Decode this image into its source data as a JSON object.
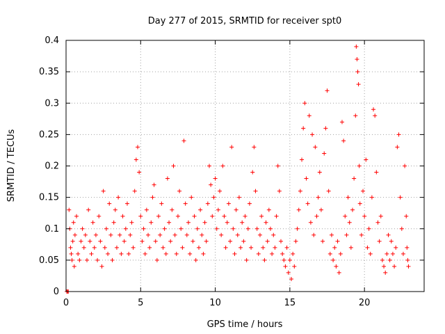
{
  "chart_data": {
    "type": "scatter",
    "title": "Day 277 of 2015, SRMTID for receiver spt0",
    "xlabel": "GPS time / hours",
    "ylabel": "SRMTID / TECUs",
    "xlim": [
      0,
      24
    ],
    "ylim": [
      0,
      0.4
    ],
    "x_ticks": [
      0,
      5,
      10,
      15,
      20
    ],
    "x_tick_labels": [
      "0",
      "5",
      "10",
      "15",
      "20"
    ],
    "y_ticks": [
      0,
      0.05,
      0.1,
      0.15,
      0.2,
      0.25,
      0.3,
      0.35,
      0.4
    ],
    "y_tick_labels": [
      "0",
      "0.05",
      "0.1",
      "0.15",
      "0.2",
      "0.25",
      "0.3",
      "0.35",
      "0.4"
    ],
    "grid": true,
    "marker": "+",
    "series": [
      {
        "name": "SRMTID",
        "color": "#ff0000",
        "points": [
          [
            0.05,
            0.0
          ],
          [
            0.1,
            0.0
          ],
          [
            0.15,
            0.0
          ],
          [
            0.2,
            0.13
          ],
          [
            0.25,
            0.1
          ],
          [
            0.3,
            0.07
          ],
          [
            0.35,
            0.06
          ],
          [
            0.4,
            0.05
          ],
          [
            0.45,
            0.08
          ],
          [
            0.5,
            0.11
          ],
          [
            0.55,
            0.04
          ],
          [
            0.6,
            0.09
          ],
          [
            0.7,
            0.12
          ],
          [
            0.8,
            0.06
          ],
          [
            0.9,
            0.05
          ],
          [
            1.0,
            0.08
          ],
          [
            1.1,
            0.1
          ],
          [
            1.2,
            0.07
          ],
          [
            1.3,
            0.09
          ],
          [
            1.4,
            0.05
          ],
          [
            1.5,
            0.13
          ],
          [
            1.6,
            0.08
          ],
          [
            1.7,
            0.06
          ],
          [
            1.8,
            0.11
          ],
          [
            1.9,
            0.07
          ],
          [
            2.0,
            0.09
          ],
          [
            2.1,
            0.05
          ],
          [
            2.2,
            0.12
          ],
          [
            2.3,
            0.08
          ],
          [
            2.4,
            0.04
          ],
          [
            2.5,
            0.16
          ],
          [
            2.6,
            0.07
          ],
          [
            2.7,
            0.1
          ],
          [
            2.8,
            0.06
          ],
          [
            2.9,
            0.14
          ],
          [
            3.0,
            0.09
          ],
          [
            3.1,
            0.05
          ],
          [
            3.2,
            0.11
          ],
          [
            3.3,
            0.13
          ],
          [
            3.4,
            0.07
          ],
          [
            3.5,
            0.15
          ],
          [
            3.6,
            0.09
          ],
          [
            3.7,
            0.06
          ],
          [
            3.8,
            0.12
          ],
          [
            3.9,
            0.08
          ],
          [
            4.0,
            0.1
          ],
          [
            4.1,
            0.14
          ],
          [
            4.2,
            0.06
          ],
          [
            4.3,
            0.09
          ],
          [
            4.4,
            0.11
          ],
          [
            4.5,
            0.07
          ],
          [
            4.6,
            0.16
          ],
          [
            4.7,
            0.21
          ],
          [
            4.8,
            0.23
          ],
          [
            4.9,
            0.19
          ],
          [
            5.0,
            0.12
          ],
          [
            5.1,
            0.08
          ],
          [
            5.2,
            0.1
          ],
          [
            5.3,
            0.06
          ],
          [
            5.4,
            0.13
          ],
          [
            5.5,
            0.09
          ],
          [
            5.6,
            0.07
          ],
          [
            5.7,
            0.11
          ],
          [
            5.8,
            0.15
          ],
          [
            5.9,
            0.17
          ],
          [
            6.0,
            0.08
          ],
          [
            6.1,
            0.05
          ],
          [
            6.2,
            0.12
          ],
          [
            6.3,
            0.09
          ],
          [
            6.4,
            0.14
          ],
          [
            6.5,
            0.07
          ],
          [
            6.6,
            0.1
          ],
          [
            6.7,
            0.06
          ],
          [
            6.8,
            0.18
          ],
          [
            6.9,
            0.11
          ],
          [
            7.0,
            0.08
          ],
          [
            7.1,
            0.13
          ],
          [
            7.2,
            0.2
          ],
          [
            7.3,
            0.09
          ],
          [
            7.4,
            0.06
          ],
          [
            7.5,
            0.12
          ],
          [
            7.6,
            0.16
          ],
          [
            7.7,
            0.1
          ],
          [
            7.8,
            0.07
          ],
          [
            7.9,
            0.24
          ],
          [
            8.0,
            0.14
          ],
          [
            8.1,
            0.09
          ],
          [
            8.2,
            0.11
          ],
          [
            8.3,
            0.06
          ],
          [
            8.4,
            0.15
          ],
          [
            8.5,
            0.08
          ],
          [
            8.6,
            0.12
          ],
          [
            8.7,
            0.05
          ],
          [
            8.8,
            0.1
          ],
          [
            8.9,
            0.07
          ],
          [
            9.0,
            0.13
          ],
          [
            9.1,
            0.09
          ],
          [
            9.2,
            0.06
          ],
          [
            9.3,
            0.11
          ],
          [
            9.4,
            0.08
          ],
          [
            9.5,
            0.14
          ],
          [
            9.6,
            0.2
          ],
          [
            9.7,
            0.17
          ],
          [
            9.8,
            0.12
          ],
          [
            9.9,
            0.15
          ],
          [
            10.0,
            0.18
          ],
          [
            10.1,
            0.1
          ],
          [
            10.2,
            0.13
          ],
          [
            10.3,
            0.16
          ],
          [
            10.4,
            0.09
          ],
          [
            10.5,
            0.2
          ],
          [
            10.6,
            0.12
          ],
          [
            10.7,
            0.07
          ],
          [
            10.8,
            0.11
          ],
          [
            10.9,
            0.14
          ],
          [
            11.0,
            0.08
          ],
          [
            11.1,
            0.23
          ],
          [
            11.2,
            0.1
          ],
          [
            11.3,
            0.06
          ],
          [
            11.4,
            0.13
          ],
          [
            11.5,
            0.09
          ],
          [
            11.6,
            0.15
          ],
          [
            11.7,
            0.07
          ],
          [
            11.8,
            0.11
          ],
          [
            11.9,
            0.08
          ],
          [
            12.0,
            0.12
          ],
          [
            12.1,
            0.05
          ],
          [
            12.2,
            0.1
          ],
          [
            12.3,
            0.14
          ],
          [
            12.4,
            0.07
          ],
          [
            12.5,
            0.19
          ],
          [
            12.6,
            0.23
          ],
          [
            12.7,
            0.16
          ],
          [
            12.8,
            0.1
          ],
          [
            12.9,
            0.06
          ],
          [
            13.0,
            0.09
          ],
          [
            13.1,
            0.12
          ],
          [
            13.2,
            0.07
          ],
          [
            13.3,
            0.05
          ],
          [
            13.4,
            0.11
          ],
          [
            13.5,
            0.08
          ],
          [
            13.6,
            0.13
          ],
          [
            13.7,
            0.1
          ],
          [
            13.8,
            0.06
          ],
          [
            13.9,
            0.09
          ],
          [
            14.0,
            0.07
          ],
          [
            14.1,
            0.12
          ],
          [
            14.2,
            0.2
          ],
          [
            14.3,
            0.16
          ],
          [
            14.4,
            0.08
          ],
          [
            14.5,
            0.06
          ],
          [
            14.6,
            0.05
          ],
          [
            14.7,
            0.04
          ],
          [
            14.8,
            0.07
          ],
          [
            14.9,
            0.03
          ],
          [
            15.0,
            0.05
          ],
          [
            15.1,
            0.02
          ],
          [
            15.2,
            0.06
          ],
          [
            15.3,
            0.04
          ],
          [
            15.4,
            0.08
          ],
          [
            15.5,
            0.1
          ],
          [
            15.6,
            0.13
          ],
          [
            15.7,
            0.16
          ],
          [
            15.8,
            0.21
          ],
          [
            15.9,
            0.26
          ],
          [
            16.0,
            0.3
          ],
          [
            16.1,
            0.18
          ],
          [
            16.2,
            0.14
          ],
          [
            16.3,
            0.28
          ],
          [
            16.4,
            0.11
          ],
          [
            16.5,
            0.25
          ],
          [
            16.6,
            0.09
          ],
          [
            16.7,
            0.23
          ],
          [
            16.8,
            0.12
          ],
          [
            16.9,
            0.15
          ],
          [
            17.0,
            0.19
          ],
          [
            17.1,
            0.13
          ],
          [
            17.2,
            0.08
          ],
          [
            17.3,
            0.22
          ],
          [
            17.4,
            0.26
          ],
          [
            17.5,
            0.32
          ],
          [
            17.6,
            0.16
          ],
          [
            17.7,
            0.06
          ],
          [
            17.8,
            0.09
          ],
          [
            17.9,
            0.05
          ],
          [
            18.0,
            0.07
          ],
          [
            18.1,
            0.04
          ],
          [
            18.2,
            0.08
          ],
          [
            18.3,
            0.03
          ],
          [
            18.4,
            0.06
          ],
          [
            18.5,
            0.27
          ],
          [
            18.6,
            0.24
          ],
          [
            18.7,
            0.12
          ],
          [
            18.8,
            0.09
          ],
          [
            18.9,
            0.15
          ],
          [
            19.0,
            0.11
          ],
          [
            19.1,
            0.07
          ],
          [
            19.2,
            0.13
          ],
          [
            19.3,
            0.18
          ],
          [
            19.4,
            0.28
          ],
          [
            19.45,
            0.39
          ],
          [
            19.5,
            0.37
          ],
          [
            19.55,
            0.35
          ],
          [
            19.6,
            0.33
          ],
          [
            19.65,
            0.2
          ],
          [
            19.7,
            0.14
          ],
          [
            19.8,
            0.09
          ],
          [
            19.9,
            0.16
          ],
          [
            20.0,
            0.12
          ],
          [
            20.1,
            0.21
          ],
          [
            20.2,
            0.07
          ],
          [
            20.3,
            0.1
          ],
          [
            20.4,
            0.06
          ],
          [
            20.5,
            0.15
          ],
          [
            20.6,
            0.29
          ],
          [
            20.7,
            0.28
          ],
          [
            20.8,
            0.19
          ],
          [
            20.9,
            0.11
          ],
          [
            21.0,
            0.08
          ],
          [
            21.1,
            0.12
          ],
          [
            21.2,
            0.05
          ],
          [
            21.3,
            0.04
          ],
          [
            21.4,
            0.03
          ],
          [
            21.5,
            0.06
          ],
          [
            21.6,
            0.09
          ],
          [
            21.7,
            0.05
          ],
          [
            21.8,
            0.08
          ],
          [
            21.9,
            0.06
          ],
          [
            22.0,
            0.04
          ],
          [
            22.1,
            0.07
          ],
          [
            22.2,
            0.23
          ],
          [
            22.3,
            0.25
          ],
          [
            22.4,
            0.15
          ],
          [
            22.5,
            0.1
          ],
          [
            22.6,
            0.06
          ],
          [
            22.7,
            0.2
          ],
          [
            22.8,
            0.12
          ],
          [
            22.85,
            0.07
          ],
          [
            22.9,
            0.05
          ],
          [
            22.95,
            0.04
          ]
        ]
      }
    ]
  }
}
